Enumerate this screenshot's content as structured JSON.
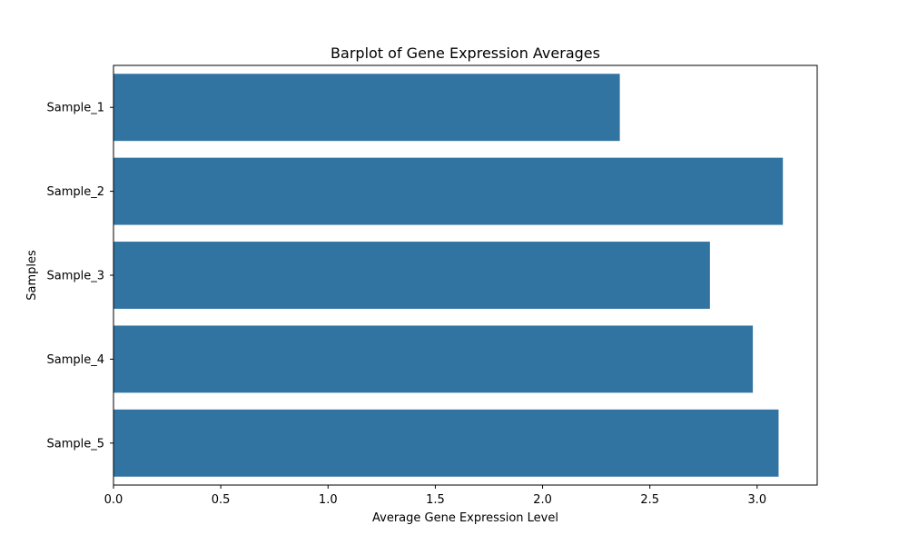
{
  "chart_data": {
    "type": "bar",
    "orientation": "horizontal",
    "title": "Barplot of Gene Expression Averages",
    "xlabel": "Average Gene Expression Level",
    "ylabel": "Samples",
    "categories": [
      "Sample_1",
      "Sample_2",
      "Sample_3",
      "Sample_4",
      "Sample_5"
    ],
    "values": [
      2.36,
      3.12,
      2.78,
      2.98,
      3.1
    ],
    "xlim": [
      0,
      3.28
    ],
    "xticks": [
      "0.0",
      "0.5",
      "1.0",
      "1.5",
      "2.0",
      "2.5",
      "3.0"
    ],
    "grid": false,
    "legend": "none",
    "bar_color": "#3274a1"
  }
}
